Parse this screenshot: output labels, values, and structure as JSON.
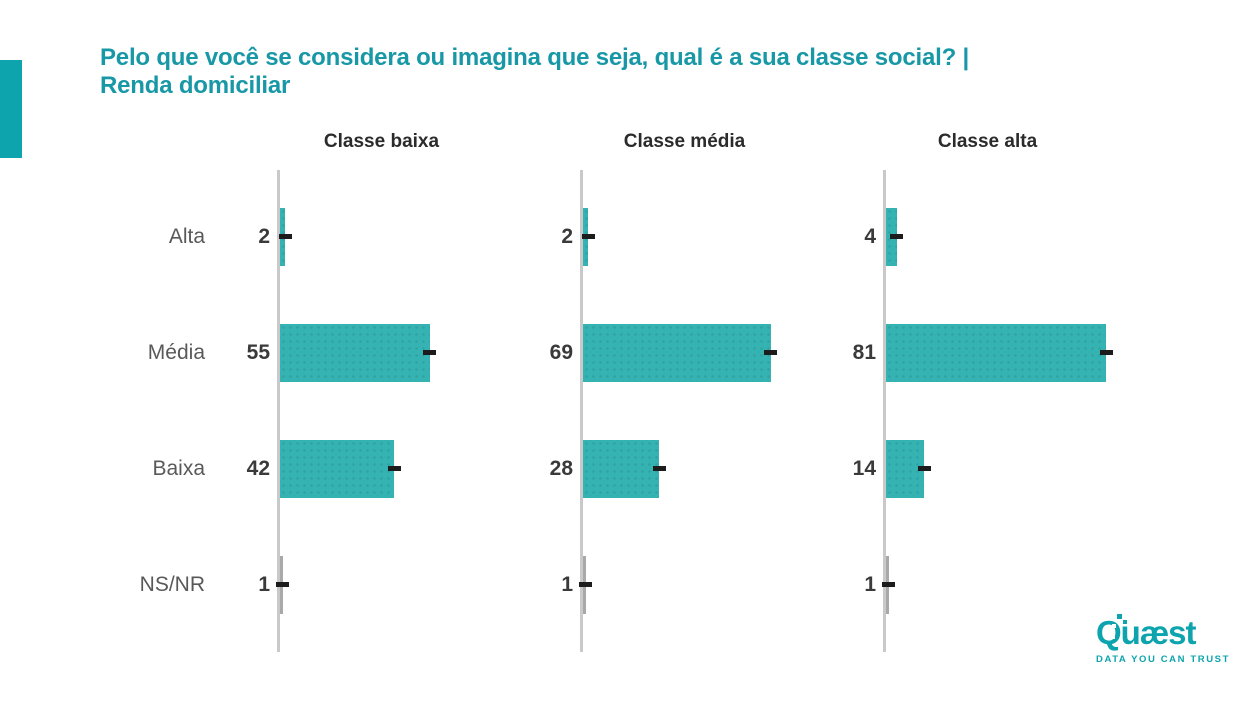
{
  "title": {
    "line1": "Pelo que você se considera ou imagina que seja, qual é a sua classe social? |",
    "line2": "Renda domiciliar"
  },
  "chart_data": {
    "type": "bar",
    "orientation": "horizontal",
    "title": "Pelo que você se considera ou imagina que seja, qual é a sua classe social? | Renda domiciliar",
    "categories": [
      "Alta",
      "Média",
      "Baixa",
      "NS/NR"
    ],
    "series": [
      {
        "name": "Classe baixa",
        "values": [
          2,
          55,
          42,
          1
        ]
      },
      {
        "name": "Classe média",
        "values": [
          2,
          69,
          28,
          1
        ]
      },
      {
        "name": "Classe alta",
        "values": [
          4,
          81,
          14,
          1
        ]
      }
    ],
    "value_axis_range": [
      0,
      93
    ],
    "grid": false,
    "legend": "none",
    "annotations": "each bar has a black end-tick marker; numeric value labels shown left of each panel axis",
    "units": "percent"
  },
  "logo": {
    "brand": "Quæst",
    "tagline": "DATA YOU CAN TRUST"
  },
  "colors": {
    "accent": "#0da4ae",
    "title": "#1898a6",
    "bar": "#35b2b2",
    "bar_small": "#a9a9a9",
    "axis": "#c9c9c9",
    "marker": "#1c1c1c",
    "label": "#595959",
    "value": "#3a3a3a",
    "header": "#2b2b2b"
  }
}
